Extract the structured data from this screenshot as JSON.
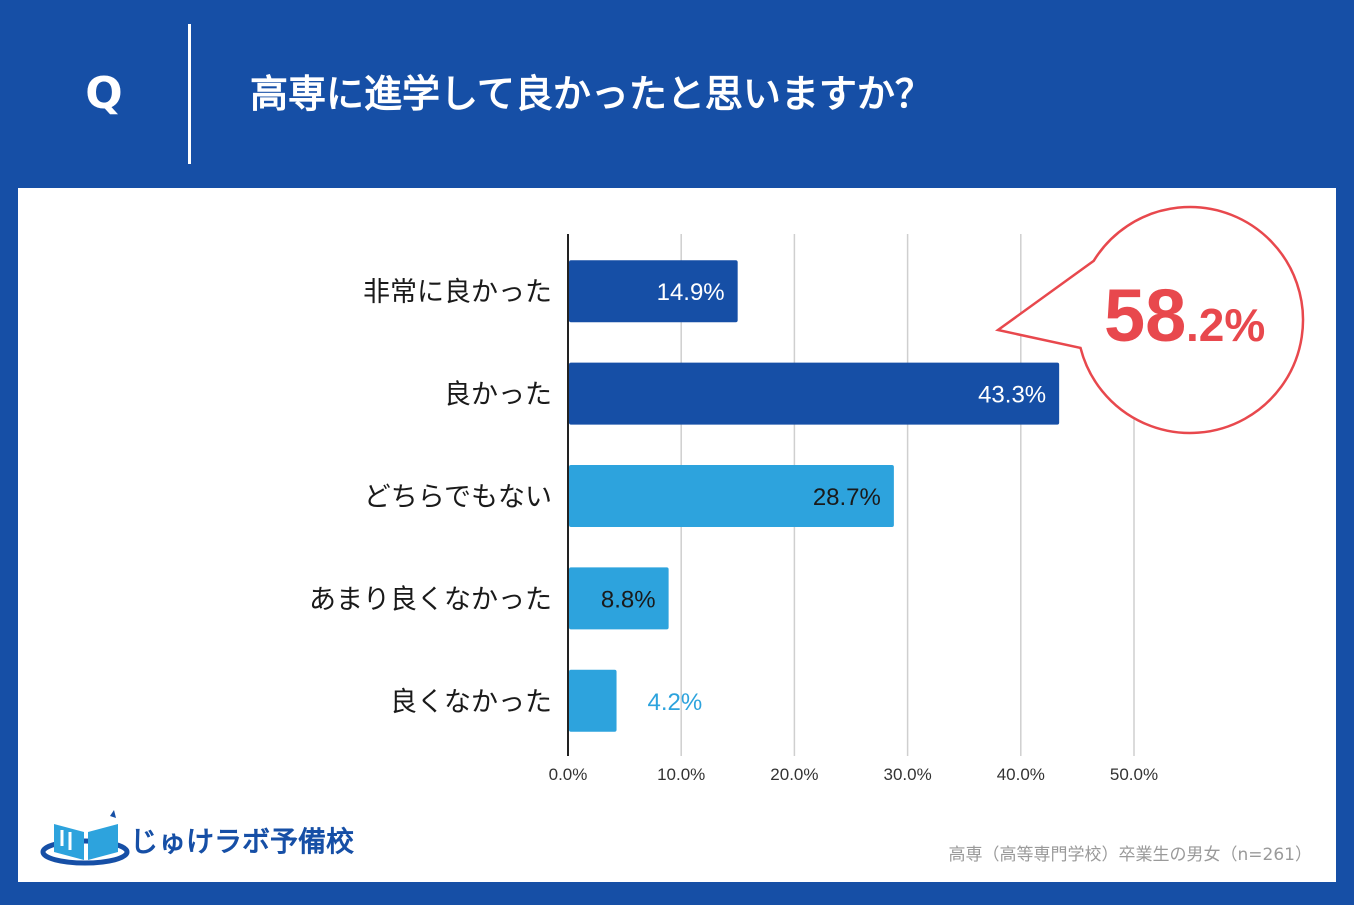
{
  "header": {
    "q_label": "Q",
    "question": "高専に進学して良かったと思いますか？"
  },
  "colors": {
    "background": "#164fa6",
    "bar_dark": "#164fa6",
    "bar_light": "#2da3dd",
    "accent_red": "#e8484d",
    "axis": "#222222",
    "grid": "#cfcfcf"
  },
  "chart_data": {
    "type": "bar",
    "orientation": "horizontal",
    "categories": [
      "非常に良かった",
      "良かった",
      "どちらでもない",
      "あまり良くなかった",
      "良くなかった"
    ],
    "values": [
      14.9,
      43.3,
      28.7,
      8.8,
      4.2
    ],
    "value_labels": [
      "14.9%",
      "43.3%",
      "28.7%",
      "8.8%",
      "4.2%"
    ],
    "bar_colors": [
      "#164fa6",
      "#164fa6",
      "#2da3dd",
      "#2da3dd",
      "#2da3dd"
    ],
    "label_colors": [
      "#ffffff",
      "#ffffff",
      "#1a1a1a",
      "#1a1a1a",
      "#2da3dd"
    ],
    "xlim": [
      0,
      50
    ],
    "x_ticks": [
      "0.0%",
      "10.0%",
      "20.0%",
      "30.0%",
      "40.0%",
      "50.0%"
    ],
    "grid": true,
    "title": "高専に進学して良かったと思いますか？",
    "callout": {
      "number": "58",
      "decimal": ".2%"
    }
  },
  "branding": {
    "name": "じゅけラボ予備校"
  },
  "footnote": "高専（高等専門学校）卒業生の男女（n=261）"
}
